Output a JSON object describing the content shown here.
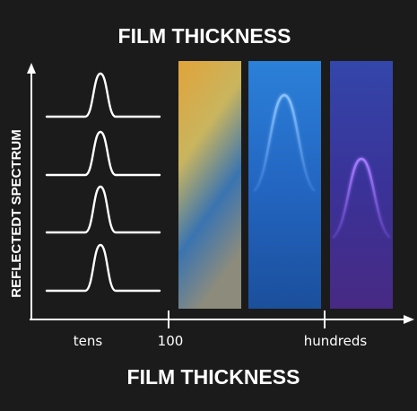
{
  "title": "FILM THICKNESS",
  "x_axis": {
    "label": "FILM THICKNESS",
    "ticks": [
      "tens",
      "100",
      "hundreds"
    ]
  },
  "y_axis": {
    "label": "REFLECTEDT SPECTRUM"
  },
  "panels": [
    {
      "name": "gold-gradient",
      "colors": [
        "#e2a33a",
        "#c6b55c",
        "#2f6fb4",
        "#8a8a7a"
      ]
    },
    {
      "name": "blue-gradient",
      "colors": [
        "#2a7fd6",
        "#1e5fb8",
        "#1b4f9c"
      ],
      "peak_color": "#79b8ff"
    },
    {
      "name": "violet-gradient",
      "colors": [
        "#3344a8",
        "#3b2f95",
        "#452a83"
      ],
      "peak_color": "#9a6bff"
    }
  ]
}
